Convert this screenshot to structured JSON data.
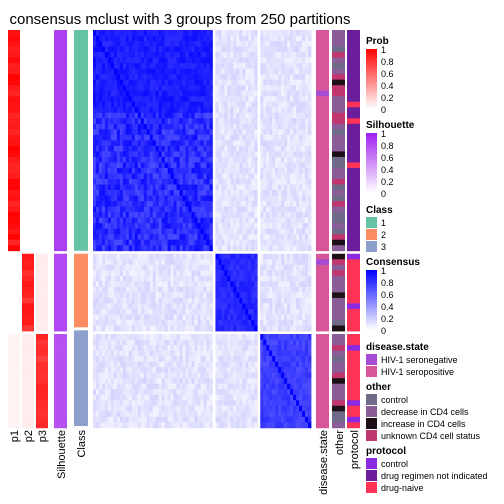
{
  "chart_data": {
    "type": "heatmap",
    "title": "consensus mclust with 3 groups from 250 partitions",
    "groups": [
      {
        "class": "1",
        "p1": 1.0,
        "p2": 0.0,
        "p3": 0.0,
        "silhouette": 0.86,
        "consensus_within": 0.95
      },
      {
        "class": "2",
        "p1": 0.0,
        "p2": 0.92,
        "p3": 0.08,
        "silhouette": 0.82,
        "consensus_within": 0.9
      },
      {
        "class": "3",
        "p1": 0.05,
        "p2": 0.08,
        "p3": 0.87,
        "silhouette": 0.78,
        "consensus_within": 0.82
      }
    ],
    "row_annotation_labels": [
      "p1",
      "p2",
      "p3",
      "Silhouette",
      "Class"
    ],
    "column_annotation_labels": [
      "disease.state",
      "other",
      "protocol"
    ],
    "legends": {
      "prob": {
        "title": "Prob",
        "ticks": [
          "1",
          "0.8",
          "0.6",
          "0.4",
          "0.2",
          "0"
        ],
        "low_color": "#ffffff",
        "high_color": "#ff0000"
      },
      "silhouette": {
        "title": "Silhouette",
        "ticks": [
          "1",
          "0.8",
          "0.6",
          "0.4",
          "0.2",
          "0"
        ],
        "low_color": "#ffffff",
        "high_color": "#a020f0"
      },
      "class": {
        "title": "Class",
        "entries": [
          {
            "label": "1",
            "color": "#66c2a5"
          },
          {
            "label": "2",
            "color": "#fc8d62"
          },
          {
            "label": "3",
            "color": "#8da0cb"
          }
        ]
      },
      "consensus": {
        "title": "Consensus",
        "ticks": [
          "1",
          "0.8",
          "0.6",
          "0.4",
          "0.2",
          "0"
        ],
        "low_color": "#ffffff",
        "high_color": "#0000ff"
      },
      "disease_state": {
        "title": "disease.state",
        "entries": [
          {
            "label": "HIV-1 seronegative",
            "color": "#a64bd4"
          },
          {
            "label": "HIV-1 seropositive",
            "color": "#d9559a"
          }
        ]
      },
      "other": {
        "title": "other",
        "entries": [
          {
            "label": "control",
            "color": "#6f6a88"
          },
          {
            "label": "decrease in CD4 cells",
            "color": "#8a5d99"
          },
          {
            "label": "increase in CD4 cells",
            "color": "#1c1016"
          },
          {
            "label": "unknown CD4 cell status",
            "color": "#c0366e"
          }
        ]
      },
      "protocol": {
        "title": "protocol",
        "entries": [
          {
            "label": "control",
            "color": "#8a2be2"
          },
          {
            "label": "drug regimen not indicated",
            "color": "#6a1e9c"
          },
          {
            "label": "drug-naive",
            "color": "#ff3355"
          }
        ]
      }
    }
  }
}
